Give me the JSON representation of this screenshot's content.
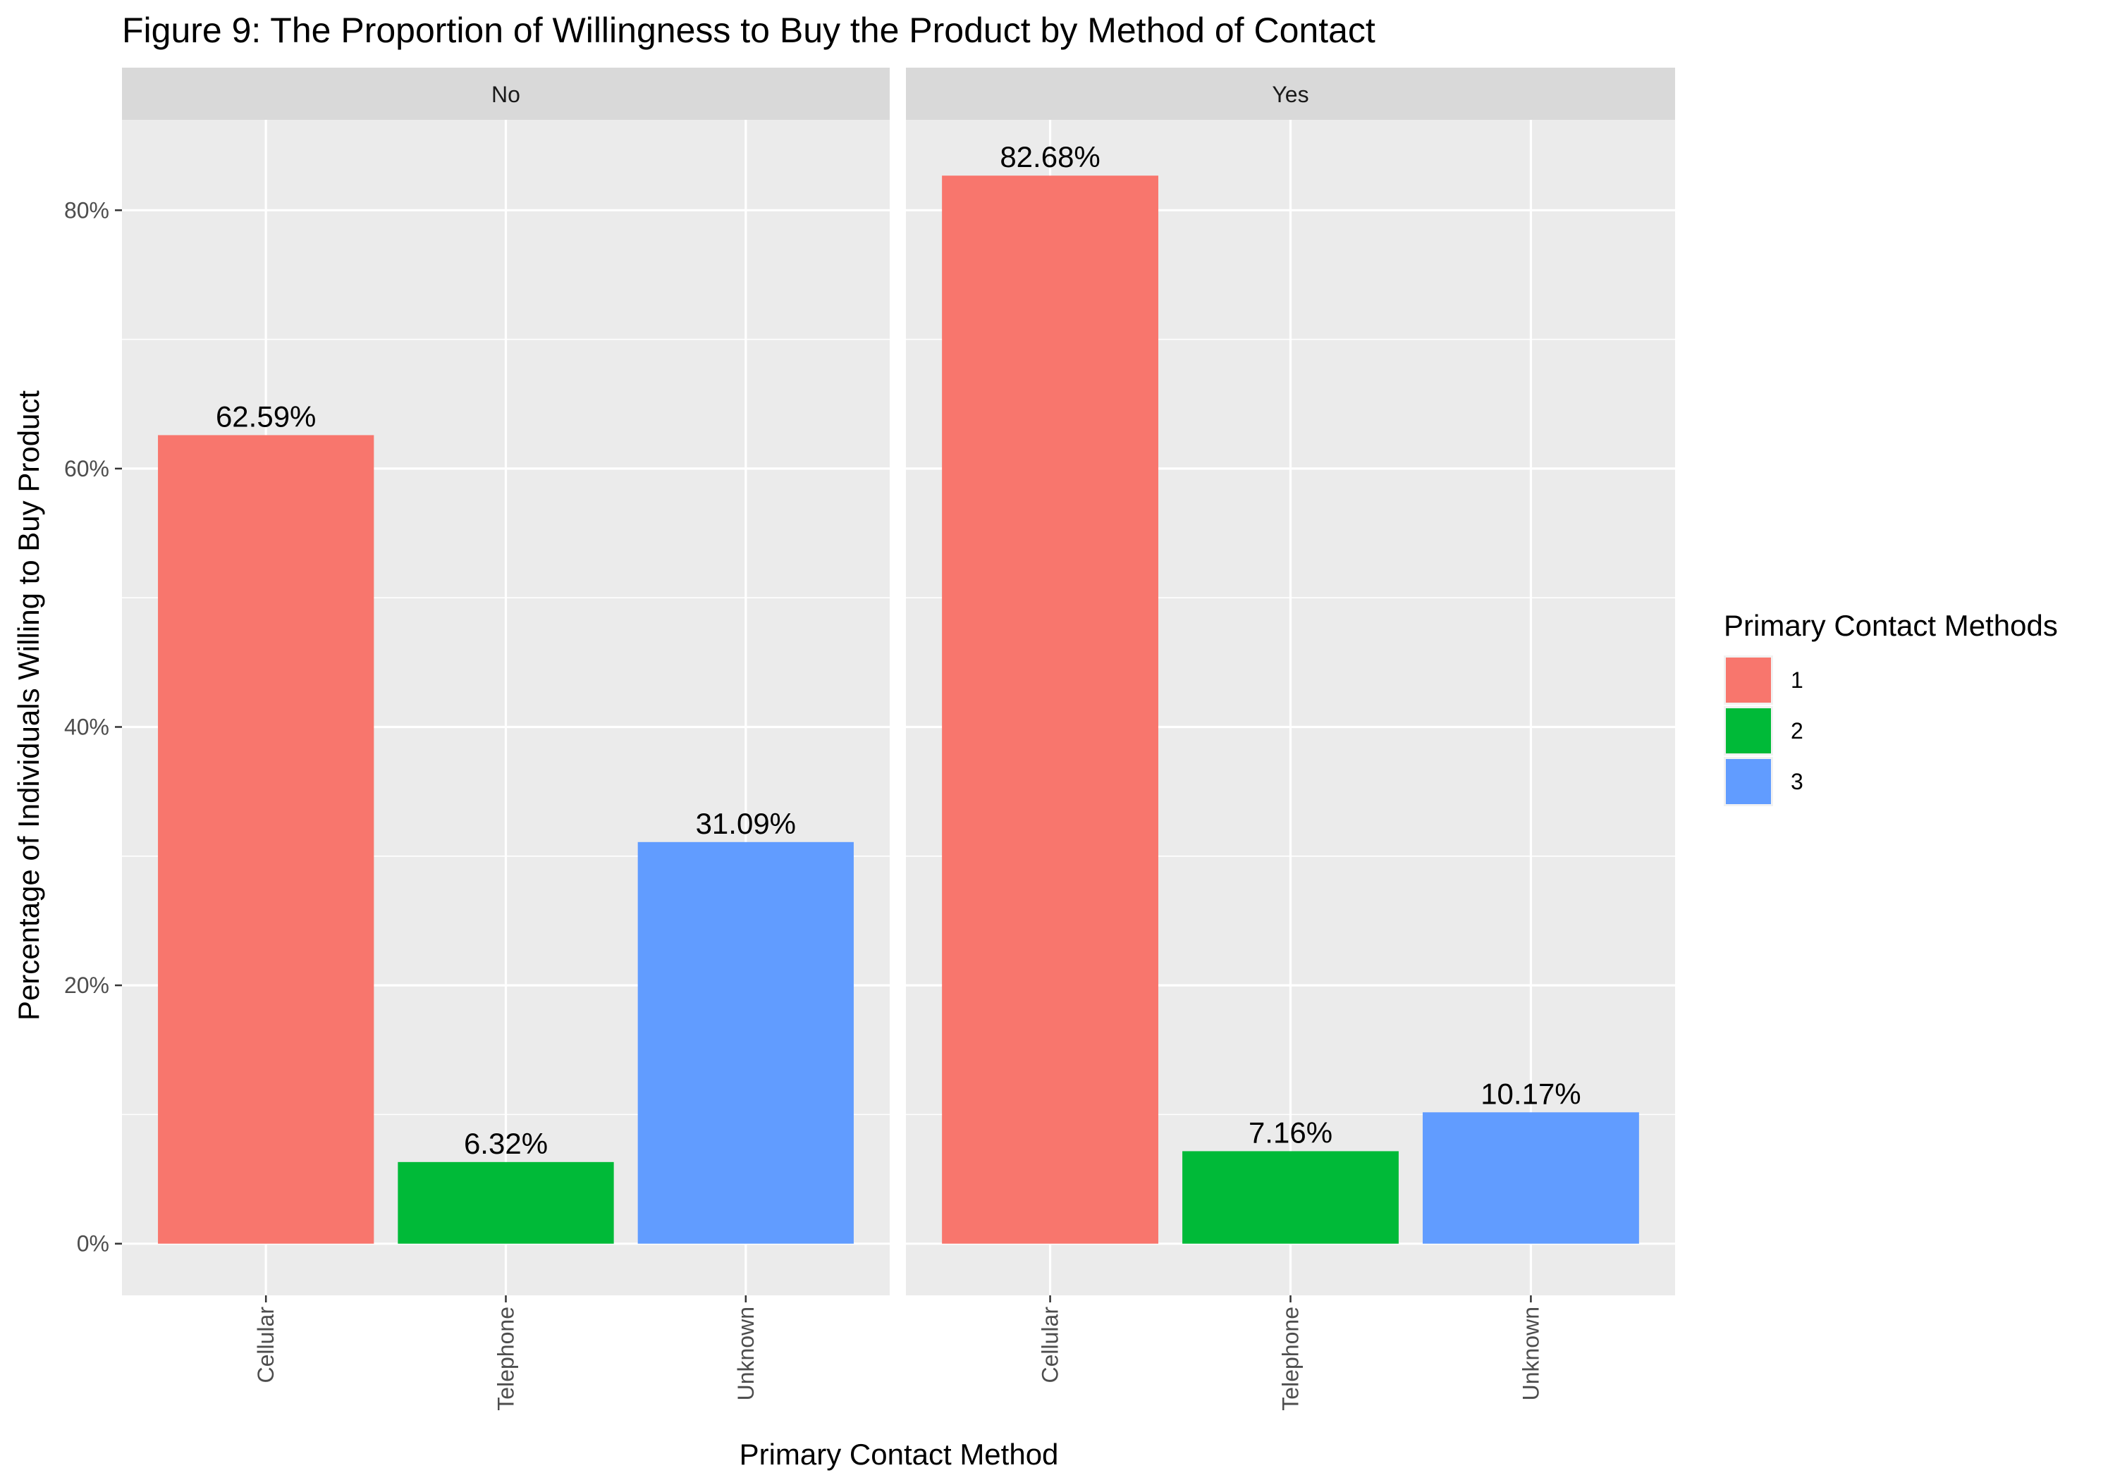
{
  "chart_data": {
    "type": "bar",
    "title": "Figure 9: The Proportion of Willingness to Buy the Product by Method of Contact",
    "xlabel": "Primary Contact Method",
    "ylabel": "Percentage of Individuals Willing to Buy Product",
    "ylim": [
      -0.04,
      0.87
    ],
    "yticks": [
      0,
      0.2,
      0.4,
      0.6,
      0.8
    ],
    "ytick_labels": [
      "0%",
      "20%",
      "40%",
      "60%",
      "80%"
    ],
    "grid": true,
    "legend": {
      "title": "Primary Contact Methods",
      "position": "right",
      "entries": [
        {
          "label": "1",
          "color": "#F8766D"
        },
        {
          "label": "2",
          "color": "#00BA38"
        },
        {
          "label": "3",
          "color": "#619CFF"
        }
      ]
    },
    "categories": [
      "Cellular",
      "Telephone",
      "Unknown"
    ],
    "facets": [
      {
        "strip": "No",
        "values": [
          0.6259,
          0.0632,
          0.3109
        ],
        "labels": [
          "62.59%",
          "6.32%",
          "31.09%"
        ]
      },
      {
        "strip": "Yes",
        "values": [
          0.8268,
          0.0716,
          0.1017
        ],
        "labels": [
          "82.68%",
          "7.16%",
          "10.17%"
        ]
      }
    ],
    "colors": [
      "#F8766D",
      "#00BA38",
      "#619CFF"
    ],
    "panel_background": "#EBEBEB",
    "strip_background": "#D9D9D9",
    "grid_color": "#FFFFFF"
  }
}
